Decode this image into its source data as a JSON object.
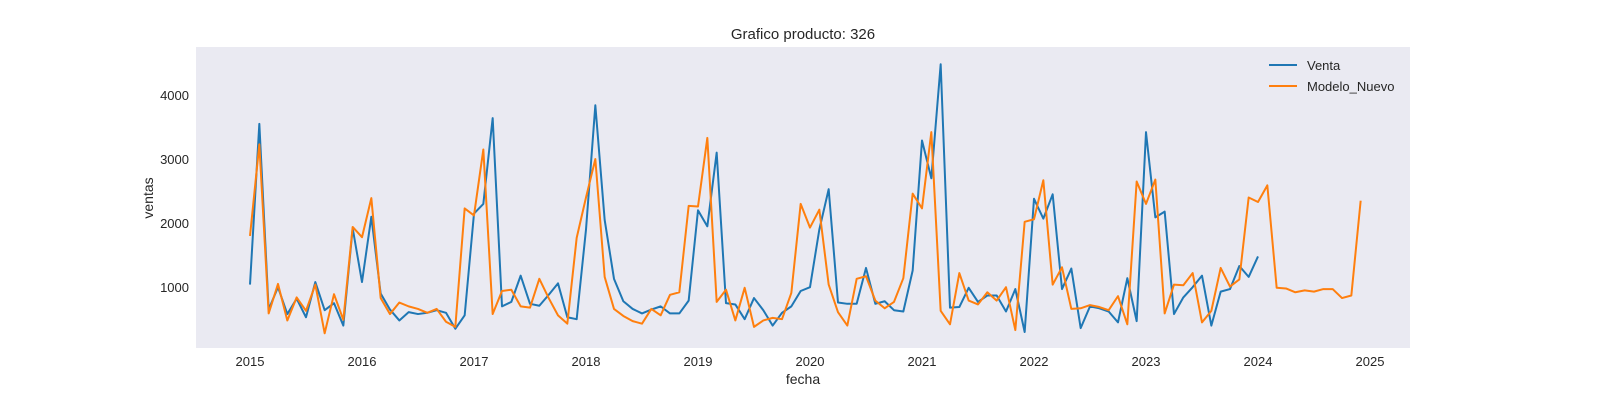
{
  "chart_data": {
    "type": "line",
    "title": "Grafico producto: 326",
    "xlabel": "fecha",
    "ylabel": "ventas",
    "x_start": "2015-01",
    "xticks": [
      "2015",
      "2016",
      "2017",
      "2018",
      "2019",
      "2020",
      "2021",
      "2022",
      "2023",
      "2024",
      "2025"
    ],
    "yticks": [
      1000,
      2000,
      3000,
      4000
    ],
    "ylim": [
      50,
      4750
    ],
    "grid": false,
    "legend": "top-right",
    "series": [
      {
        "name": "Venta",
        "color": "#1f77b4",
        "values": [
          1040,
          3550,
          650,
          1000,
          580,
          820,
          530,
          1080,
          640,
          750,
          400,
          1920,
          1080,
          2100,
          900,
          650,
          480,
          610,
          580,
          600,
          640,
          600,
          350,
          560,
          2150,
          2300,
          3640,
          700,
          770,
          1180,
          740,
          710,
          880,
          1060,
          530,
          500,
          1900,
          3840,
          2050,
          1130,
          780,
          660,
          590,
          650,
          700,
          590,
          590,
          790,
          2200,
          1950,
          3100,
          750,
          730,
          500,
          830,
          640,
          400,
          600,
          700,
          940,
          1000,
          1900,
          2530,
          760,
          740,
          740,
          1300,
          740,
          780,
          640,
          620,
          1260,
          3290,
          2700,
          4480,
          680,
          690,
          990,
          770,
          870,
          870,
          620,
          970,
          300,
          2380,
          2070,
          2450,
          970,
          1290,
          360,
          700,
          670,
          620,
          450,
          1140,
          470,
          3420,
          2090,
          2180,
          580,
          840,
          1000,
          1180,
          400,
          930,
          970,
          1330,
          1160,
          1480
        ]
      },
      {
        "name": "Modelo_Nuevo",
        "color": "#ff7f0e",
        "values": [
          1800,
          3230,
          590,
          1050,
          480,
          840,
          630,
          1040,
          280,
          890,
          490,
          1940,
          1780,
          2390,
          830,
          580,
          760,
          700,
          660,
          600,
          660,
          460,
          380,
          2230,
          2120,
          3150,
          580,
          940,
          960,
          700,
          680,
          1130,
          830,
          560,
          430,
          1770,
          2400,
          3000,
          1160,
          660,
          550,
          470,
          430,
          660,
          560,
          880,
          920,
          2270,
          2260,
          3330,
          770,
          960,
          480,
          990,
          380,
          480,
          520,
          500,
          910,
          2300,
          1930,
          2210,
          1040,
          610,
          400,
          1130,
          1170,
          790,
          670,
          770,
          1140,
          2460,
          2230,
          3420,
          630,
          420,
          1220,
          790,
          730,
          920,
          790,
          1000,
          330,
          2020,
          2060,
          2670,
          1040,
          1310,
          660,
          670,
          720,
          690,
          640,
          860,
          420,
          2650,
          2300,
          2680,
          590,
          1040,
          1030,
          1220,
          450,
          630,
          1300,
          1010,
          1120,
          2400,
          2330,
          2590,
          990,
          980,
          920,
          950,
          930,
          970,
          970,
          830,
          870,
          2350
        ]
      }
    ]
  }
}
